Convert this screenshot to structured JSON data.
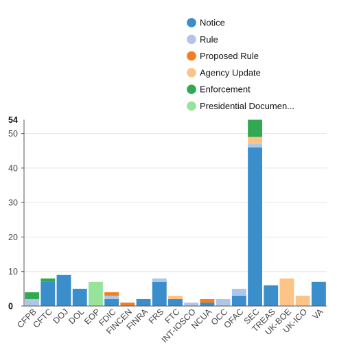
{
  "chart_data": {
    "type": "bar",
    "stacked": true,
    "categories": [
      "CFPB",
      "CFTC",
      "DOJ",
      "DOL",
      "EOP",
      "FDIC",
      "FINCEN",
      "FINRA",
      "FRS",
      "FTC",
      "INT-IOSCO",
      "NCUA",
      "OCC",
      "OFAC",
      "SEC",
      "TREAS",
      "UK-BOE",
      "UK-ICO",
      "VA"
    ],
    "series": [
      {
        "name": "Notice",
        "color": "#3a8ecc",
        "values": [
          0,
          7,
          9,
          5,
          0,
          2,
          0,
          2,
          7,
          2,
          0,
          1,
          0,
          3,
          46,
          6,
          0,
          0,
          7
        ]
      },
      {
        "name": "Rule",
        "color": "#aec7e8",
        "values": [
          2,
          0,
          0,
          0,
          0,
          1,
          0,
          0,
          1,
          0,
          1,
          0,
          2,
          2,
          1,
          0,
          0,
          0,
          0
        ]
      },
      {
        "name": "Proposed Rule",
        "color": "#f47d20",
        "values": [
          0,
          0,
          0,
          0,
          0,
          1,
          1,
          0,
          0,
          0,
          0,
          1,
          0,
          0,
          0,
          0,
          0,
          0,
          0
        ]
      },
      {
        "name": "Agency Update",
        "color": "#fdc487",
        "values": [
          0,
          0,
          0,
          0,
          0,
          0,
          0,
          0,
          0,
          1,
          0,
          0,
          0,
          0,
          2,
          0,
          8,
          3,
          0
        ]
      },
      {
        "name": "Enforcement",
        "color": "#33a852",
        "values": [
          2,
          1,
          0,
          0,
          0,
          0,
          0,
          0,
          0,
          0,
          0,
          0,
          0,
          0,
          5,
          0,
          0,
          0,
          0
        ]
      },
      {
        "name": "Presidential Documen...",
        "color": "#98e39a",
        "values": [
          0,
          0,
          0,
          0,
          7,
          0,
          0,
          0,
          0,
          0,
          0,
          0,
          0,
          0,
          0,
          0,
          0,
          0,
          0
        ]
      }
    ],
    "yticks": [
      0,
      10,
      20,
      30,
      40,
      50
    ],
    "ymax_label": "54",
    "ylim": [
      0,
      54
    ],
    "grid": true,
    "legend_position": "top-right"
  }
}
